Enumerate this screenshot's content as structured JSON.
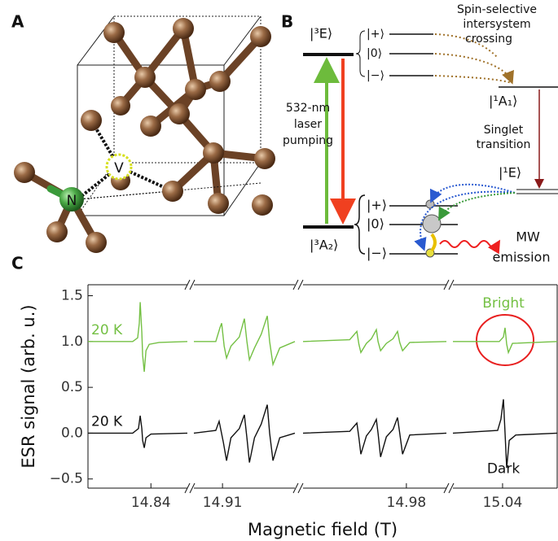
{
  "panel_a": {
    "label": "A",
    "vacancy": "V",
    "nitrogen": "N"
  },
  "panel_b": {
    "label": "B",
    "excited": "|³E⟩",
    "ground": "|³A₂⟩",
    "singlet_upper": "|¹A₁⟩",
    "singlet_lower": "|¹E⟩",
    "excited_sublevels": [
      "|+⟩",
      "|0⟩",
      "|−⟩"
    ],
    "ground_sublevels": [
      "|+⟩",
      "|0⟩",
      "|−⟩"
    ],
    "isc": [
      "Spin-selective",
      "intersystem",
      "crossing"
    ],
    "pumping": [
      "532-nm",
      "laser",
      "pumping"
    ],
    "singlet": [
      "Singlet",
      "transition"
    ],
    "mw": [
      "MW",
      "emission"
    ]
  },
  "panel_c": {
    "label": "C"
  },
  "chart_data": {
    "type": "line",
    "xlabel": "Magnetic field (T)",
    "ylabel": "ESR signal (arb. u.)",
    "ylim": [
      -0.6,
      1.62
    ],
    "yticks": [
      {
        "value": -0.5,
        "label": "−0.5"
      },
      {
        "value": 0,
        "label": "0.0"
      },
      {
        "value": 0.5,
        "label": "0.5"
      },
      {
        "value": 1,
        "label": "1.0"
      },
      {
        "value": 1.5,
        "label": "1.5"
      }
    ],
    "segments": [
      {
        "xlim": [
          14.802,
          14.862
        ],
        "xticks": [
          14.84
        ]
      },
      {
        "xlim": [
          14.893,
          14.953
        ],
        "xticks": [
          14.91
        ]
      },
      {
        "xlim": [
          14.918,
          15.004
        ],
        "xticks": [
          14.98
        ]
      },
      {
        "xlim": [
          15.01,
          15.073
        ],
        "xticks": [
          15.04
        ]
      }
    ],
    "series": [
      {
        "name": "20 K",
        "color": "#74c044",
        "annotation": "Bright",
        "pieces": [
          {
            "x": [
              14.802,
              14.829,
              14.832,
              14.833,
              14.8335,
              14.8345,
              14.835,
              14.836,
              14.837,
              14.839,
              14.845,
              14.862
            ],
            "values": [
              1.0,
              1.0,
              1.04,
              1.2,
              1.43,
              1.1,
              0.85,
              0.67,
              0.9,
              0.97,
              0.99,
              1.0
            ]
          },
          {
            "x": [
              14.893,
              14.906,
              14.9085,
              14.9095,
              14.911,
              14.9124,
              14.915,
              14.92,
              14.923,
              14.9245,
              14.926,
              14.929,
              14.933,
              14.9366,
              14.938,
              14.94,
              14.944,
              14.953
            ],
            "values": [
              1.0,
              1.0,
              1.15,
              1.2,
              0.95,
              0.82,
              0.95,
              1.05,
              1.25,
              1.0,
              0.8,
              0.93,
              1.08,
              1.28,
              1.0,
              0.75,
              0.93,
              1.0
            ]
          },
          {
            "x": [
              14.918,
              14.946,
              14.9503,
              14.9515,
              14.9527,
              14.956,
              14.959,
              14.962,
              14.963,
              14.9645,
              14.968,
              14.972,
              14.9747,
              14.976,
              14.9777,
              14.982,
              15.004
            ],
            "values": [
              1.0,
              1.02,
              1.11,
              0.97,
              0.88,
              0.98,
              1.03,
              1.13,
              1.0,
              0.9,
              0.98,
              1.03,
              1.11,
              0.99,
              0.9,
              0.99,
              1.0
            ]
          },
          {
            "x": [
              15.01,
              15.038,
              15.0405,
              15.0415,
              15.0425,
              15.0435,
              15.046,
              15.073
            ],
            "values": [
              1.0,
              1.0,
              1.05,
              1.15,
              0.97,
              0.88,
              0.98,
              1.0
            ]
          }
        ]
      },
      {
        "name": "20 K",
        "color": "#111111",
        "annotation": "Dark",
        "pieces": [
          {
            "x": [
              14.802,
              14.829,
              14.8325,
              14.8335,
              14.8345,
              14.835,
              14.836,
              14.837,
              14.84,
              14.862
            ],
            "values": [
              0,
              0,
              0.05,
              0.19,
              0.05,
              -0.08,
              -0.16,
              -0.05,
              -0.01,
              0
            ]
          },
          {
            "x": [
              14.893,
              14.906,
              14.908,
              14.9105,
              14.9124,
              14.915,
              14.92,
              14.923,
              14.9245,
              14.926,
              14.929,
              14.933,
              14.9366,
              14.938,
              14.94,
              14.944,
              14.953
            ],
            "values": [
              0,
              0.03,
              0.13,
              -0.1,
              -0.3,
              -0.05,
              0.05,
              0.2,
              -0.05,
              -0.32,
              -0.05,
              0.1,
              0.31,
              0.0,
              -0.3,
              -0.05,
              0
            ]
          },
          {
            "x": [
              14.918,
              14.946,
              14.9503,
              14.9515,
              14.9527,
              14.956,
              14.959,
              14.962,
              14.963,
              14.9645,
              14.968,
              14.972,
              14.9747,
              14.976,
              14.9777,
              14.982,
              15.004
            ],
            "values": [
              0,
              0.02,
              0.11,
              -0.05,
              -0.23,
              -0.03,
              0.04,
              0.15,
              0,
              -0.26,
              -0.04,
              0.04,
              0.17,
              0,
              -0.23,
              -0.02,
              0
            ]
          },
          {
            "x": [
              15.01,
              15.037,
              15.039,
              15.0405,
              15.0415,
              15.0425,
              15.044,
              15.048,
              15.073
            ],
            "values": [
              0,
              0.03,
              0.15,
              0.37,
              0.0,
              -0.38,
              -0.08,
              -0.02,
              0
            ]
          }
        ]
      }
    ]
  }
}
